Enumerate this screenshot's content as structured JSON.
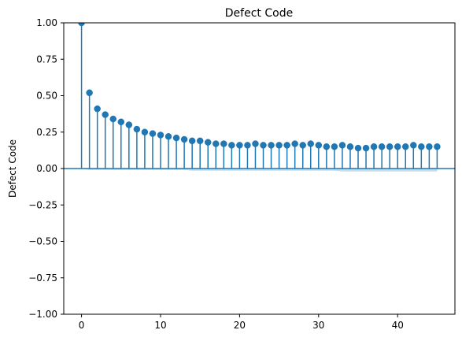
{
  "chart_data": {
    "type": "scatter",
    "subtype": "stem",
    "title": "Defect Code",
    "xlabel": "",
    "ylabel": "Defect Code",
    "xlim": [
      -2.25,
      47.25
    ],
    "ylim": [
      -1.0,
      1.0
    ],
    "grid": false,
    "xticks": [
      0,
      10,
      20,
      30,
      40
    ],
    "xtick_labels": [
      "0",
      "10",
      "20",
      "30",
      "40"
    ],
    "yticks": [
      -1.0,
      -0.75,
      -0.5,
      -0.25,
      0.0,
      0.25,
      0.5,
      0.75,
      1.0
    ],
    "ytick_labels": [
      "−1.00",
      "−0.75",
      "−0.50",
      "−0.25",
      "0.00",
      "0.25",
      "0.50",
      "0.75",
      "1.00"
    ],
    "lags": [
      0,
      1,
      2,
      3,
      4,
      5,
      6,
      7,
      8,
      9,
      10,
      11,
      12,
      13,
      14,
      15,
      16,
      17,
      18,
      19,
      20,
      21,
      22,
      23,
      24,
      25,
      26,
      27,
      28,
      29,
      30,
      31,
      32,
      33,
      34,
      35,
      36,
      37,
      38,
      39,
      40,
      41,
      42,
      43,
      44,
      45
    ],
    "values": [
      1.0,
      0.52,
      0.41,
      0.37,
      0.34,
      0.32,
      0.3,
      0.27,
      0.25,
      0.24,
      0.23,
      0.22,
      0.21,
      0.2,
      0.19,
      0.19,
      0.18,
      0.17,
      0.17,
      0.16,
      0.16,
      0.16,
      0.17,
      0.16,
      0.16,
      0.16,
      0.16,
      0.17,
      0.16,
      0.17,
      0.16,
      0.15,
      0.15,
      0.16,
      0.15,
      0.14,
      0.14,
      0.15,
      0.15,
      0.15,
      0.15,
      0.15,
      0.16,
      0.15,
      0.15,
      0.15
    ],
    "confidence_band": {
      "upper": [
        0.0,
        0.0,
        0.0,
        0.0,
        0.0,
        0.0,
        0.0,
        0.0,
        0.0,
        0.0,
        0.0,
        0.0,
        0.0,
        0.0,
        0.0,
        0.0,
        0.0,
        0.0,
        0.0,
        0.0,
        0.0,
        0.0,
        0.0,
        0.0,
        0.0,
        0.0,
        0.0,
        0.0,
        0.0,
        0.0,
        0.0,
        0.0,
        0.0,
        0.0,
        0.0,
        0.0,
        0.0,
        0.0,
        0.0,
        0.0,
        0.0,
        0.0,
        0.0,
        0.0,
        0.0,
        0.0
      ],
      "lower": [
        0.0,
        -0.01,
        -0.01,
        -0.01,
        -0.01,
        -0.01,
        -0.01,
        -0.01,
        -0.01,
        -0.01,
        -0.01,
        -0.01,
        -0.01,
        -0.01,
        -0.015,
        -0.015,
        -0.015,
        -0.015,
        -0.015,
        -0.015,
        -0.015,
        -0.015,
        -0.015,
        -0.015,
        -0.015,
        -0.015,
        -0.015,
        -0.015,
        -0.015,
        -0.015,
        -0.015,
        -0.015,
        -0.015,
        -0.02,
        -0.02,
        -0.02,
        -0.02,
        -0.02,
        -0.02,
        -0.02,
        -0.02,
        -0.02,
        -0.02,
        -0.02,
        -0.02,
        -0.02
      ]
    },
    "colors": {
      "stem": "#1f77b4",
      "marker": "#1f77b4",
      "baseline": "#1f77b4",
      "band": "#1f77b4"
    }
  }
}
